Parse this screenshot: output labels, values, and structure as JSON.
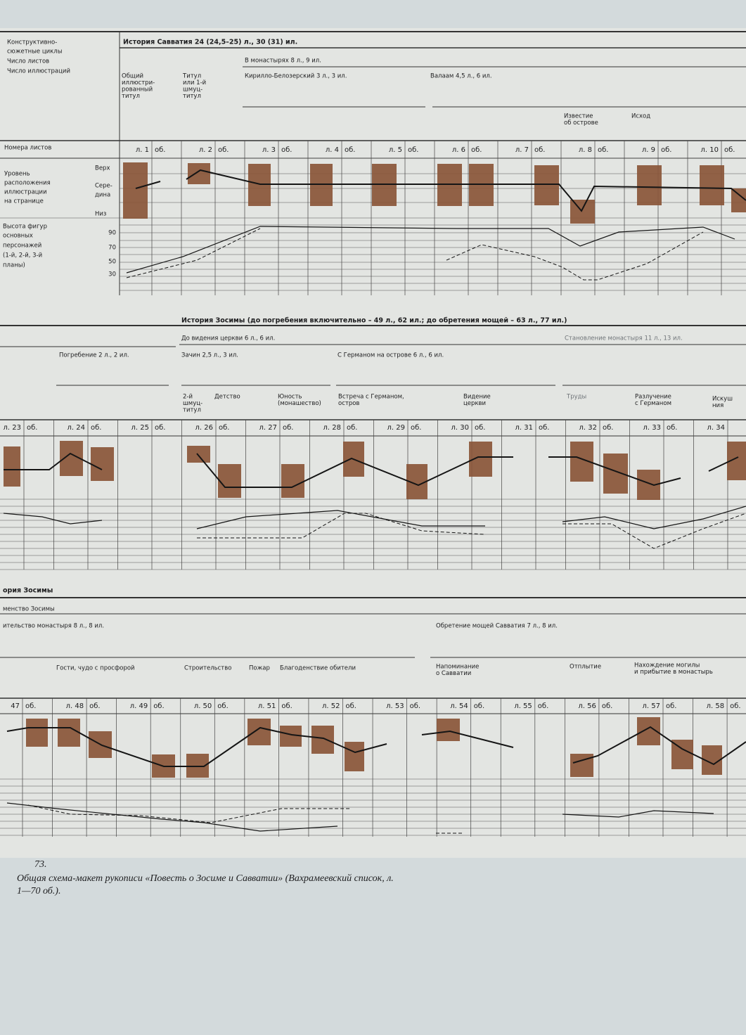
{
  "legend": {
    "cycles": [
      "Конструктивно-",
      "сюжетные циклы"
    ],
    "leaves": "Число листов",
    "illustrations": "Число иллюстраций",
    "leaf_numbers": "Номера листов",
    "level": [
      "Уровень",
      "расположения",
      "иллюстрации",
      "на странице"
    ],
    "top": "Верх",
    "middle": [
      "Сере-",
      "дина"
    ],
    "bottom": "Низ",
    "height": [
      "Высота фигур",
      "основных",
      "персонажей",
      "(1-й, 2-й, 3-й",
      "планы)"
    ],
    "height_ticks": [
      90,
      70,
      50,
      30
    ]
  },
  "section1": {
    "title": "История Савватия 24 (24,5–25) л., 30 (31) ил.",
    "monasteries": "В монастырях 8 л., 9 ил.",
    "kirillo": "Кирилло-Белозерский 3 л., 3 ил.",
    "valaam": "Валаам 4,5 л., 6 ил.",
    "notes": [
      [
        "Общий",
        "иллюстри-",
        "рованный",
        "титул"
      ],
      [
        "Титул",
        "или 1-й",
        "шмуц-",
        "титул"
      ],
      [
        "Известие",
        "об острове"
      ],
      [
        "Исход"
      ]
    ],
    "leaves": [
      "л. 1",
      "об.",
      "л. 2",
      "об.",
      "л. 3",
      "об.",
      "л. 4",
      "об.",
      "л. 5",
      "об.",
      "л. 6",
      "об.",
      "л. 7",
      "об.",
      "л. 8",
      "об.",
      "л. 9",
      "об.",
      "л. 10",
      "об."
    ]
  },
  "section2": {
    "title": "История Зосимы (до погребения включительно – 49 л., 62 ил.; до обретения мощей – 63 л., 77 ил.)",
    "vision": "До видения церкви 6 л., 6 ил.",
    "founding": "Становление монастыря 11 л., 13 ил.",
    "burial": "Погребение 2 л., 2 ил.",
    "opening": "Зачин 2,5 л., 3 ил.",
    "german": "С Германом на острове 6 л., 6 ил.",
    "notes": [
      [
        "2-й",
        "шмуц-",
        "титул"
      ],
      [
        "Детство"
      ],
      [
        "Юность",
        "(монашество)"
      ],
      [
        "Встреча с Германом,",
        "остров"
      ],
      [
        "Видение",
        "церкви"
      ],
      [
        "Труды"
      ],
      [
        "Разлучение",
        "с Германом"
      ],
      [
        "Искуш",
        "ния"
      ]
    ],
    "leaves": [
      "л. 23",
      "об.",
      "л. 24",
      "об.",
      "л. 25",
      "об.",
      "л. 26",
      "об.",
      "л. 27",
      "об.",
      "л. 28",
      "об.",
      "л. 29",
      "об.",
      "л. 30",
      "об.",
      "л. 31",
      "об.",
      "л. 32",
      "об.",
      "л. 33",
      "об.",
      "л. 34"
    ]
  },
  "section3": {
    "title": "ория Зосимы",
    "monkhood": "менство Зосимы",
    "building": "ительство монастыря 8 л., 8 ил.",
    "relics": "Обретение мощей Савватия 7 л., 8 ил.",
    "notes": [
      [
        "Гости, чудо с просфорой"
      ],
      [
        "Строительство"
      ],
      [
        "Пожар"
      ],
      [
        "Благоденствие обители"
      ],
      [
        "Напоминание",
        "о Савватии"
      ],
      [
        "Отплытие"
      ],
      [
        "Нахождение могилы",
        "и прибытие в монастырь"
      ]
    ],
    "leaves": [
      "47",
      "об.",
      "л. 48",
      "об.",
      "л. 49",
      "об.",
      "л. 50",
      "об.",
      "л. 51",
      "об.",
      "л. 52",
      "об.",
      "л. 53",
      "об.",
      "л. 54",
      "об.",
      "л. 55",
      "об.",
      "л. 56",
      "об.",
      "л. 57",
      "об.",
      "л. 58",
      "об."
    ]
  },
  "caption": {
    "number": "73.",
    "text": [
      "Общая схема-макет рукописи «Повесть о Зосиме и Савватии» (Вахрамеевский список, л.",
      "1—70 об.)."
    ]
  }
}
